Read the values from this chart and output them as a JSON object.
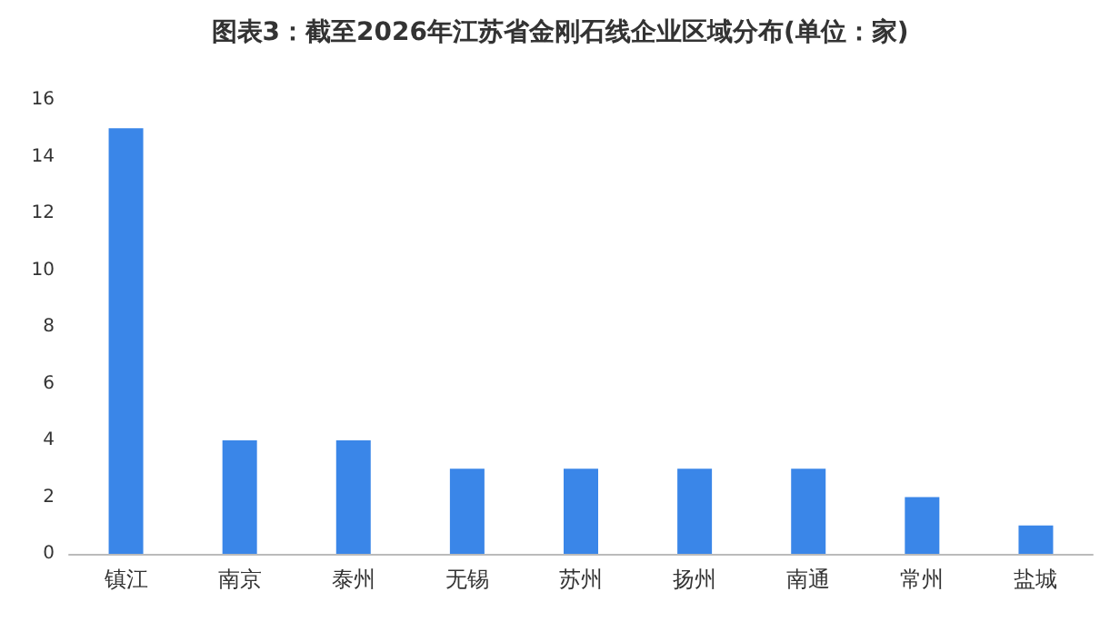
{
  "chart_data": {
    "type": "bar",
    "title": "图表3：截至2026年江苏省金刚石线企业区域分布(单位：家)",
    "categories": [
      "镇江",
      "南京",
      "泰州",
      "无锡",
      "苏州",
      "扬州",
      "南通",
      "常州",
      "盐城"
    ],
    "values": [
      15,
      4,
      4,
      3,
      3,
      3,
      3,
      2,
      1
    ],
    "color": "#3a86e8",
    "ylim": [
      0,
      16
    ],
    "yticks": [
      0,
      2,
      4,
      6,
      8,
      10,
      12,
      14,
      16
    ],
    "grid": false
  }
}
